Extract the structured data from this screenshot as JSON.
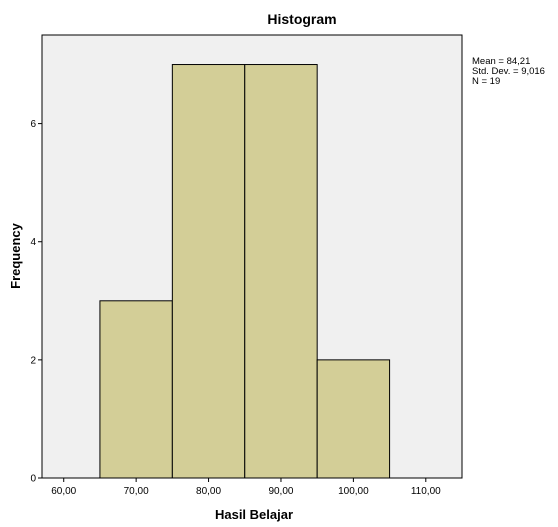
{
  "chart_data": {
    "type": "bar",
    "title": "Histogram",
    "xlabel": "Hasil Belajar",
    "ylabel": "Frequency",
    "x_ticks": [
      "60,00",
      "70,00",
      "80,00",
      "90,00",
      "100,00",
      "110,00"
    ],
    "y_ticks": [
      "0",
      "2",
      "4",
      "6"
    ],
    "xlim": [
      57,
      115
    ],
    "ylim": [
      0,
      7.5
    ],
    "bins": [
      {
        "start": 65,
        "end": 75,
        "count": 3
      },
      {
        "start": 75,
        "end": 85,
        "count": 7
      },
      {
        "start": 85,
        "end": 95,
        "count": 7
      },
      {
        "start": 95,
        "end": 105,
        "count": 2
      }
    ],
    "grid": false,
    "colors": {
      "plot_background": "#f0f0f0",
      "bar_fill": "#d3ce97",
      "bar_stroke": "#000000"
    }
  },
  "stats": {
    "mean": "Mean = 84,21",
    "std_dev": "Std. Dev. = 9,016",
    "n": "N = 19"
  }
}
